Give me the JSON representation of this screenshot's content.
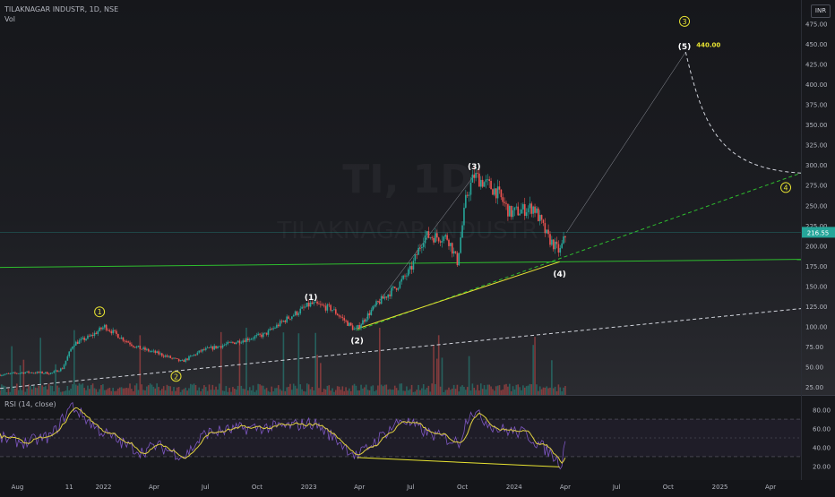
{
  "header": {
    "symbol_line": "TILAKNAGAR INDUSTR, 1D, NSE",
    "volume_label": "Vol",
    "currency_badge": "INR"
  },
  "watermark": {
    "ticker": "TI, 1D",
    "name": "TILAKNAGAR INDUSTR"
  },
  "colors": {
    "background": "#141519",
    "up": "#26a69a",
    "down": "#ef5350",
    "trend_green": "#2ebd2e",
    "wave_yellow": "#e8e332",
    "rsi_line": "#7e57c2",
    "rsi_ma": "#e0d040",
    "price_badge": "#26a69a"
  },
  "chart_data": {
    "type": "line",
    "symbol": "TILAKNAGAR INDUSTR",
    "interval": "1D",
    "exchange": "NSE",
    "currency": "INR",
    "price_axis": {
      "ylim": [
        15,
        500
      ],
      "ticks": [
        "25.00",
        "50.00",
        "75.00",
        "100.00",
        "125.00",
        "150.00",
        "175.00",
        "200.00",
        "225.00",
        "250.00",
        "275.00",
        "300.00",
        "325.00",
        "350.00",
        "375.00",
        "400.00",
        "425.00",
        "450.00",
        "475.00"
      ]
    },
    "time_axis": {
      "xlim": [
        "2021-07-01",
        "2025-05-25"
      ],
      "ticks": [
        {
          "label": "Aug",
          "date": "2021-08-01"
        },
        {
          "label": "11",
          "date": "2021-11-01"
        },
        {
          "label": "2022",
          "date": "2022-01-01"
        },
        {
          "label": "Apr",
          "date": "2022-04-01"
        },
        {
          "label": "Jul",
          "date": "2022-07-01"
        },
        {
          "label": "Oct",
          "date": "2022-10-01"
        },
        {
          "label": "2023",
          "date": "2023-01-01"
        },
        {
          "label": "Apr",
          "date": "2023-04-01"
        },
        {
          "label": "Jul",
          "date": "2023-07-01"
        },
        {
          "label": "Oct",
          "date": "2023-10-01"
        },
        {
          "label": "2024",
          "date": "2024-01-01"
        },
        {
          "label": "Apr",
          "date": "2024-04-01"
        },
        {
          "label": "Jul",
          "date": "2024-07-01"
        },
        {
          "label": "Oct",
          "date": "2024-10-01"
        },
        {
          "label": "2025",
          "date": "2025-01-01"
        },
        {
          "label": "Apr",
          "date": "2025-04-01"
        }
      ]
    },
    "price_path": [
      [
        "2021-07-01",
        40
      ],
      [
        "2021-08-15",
        43
      ],
      [
        "2021-10-01",
        42
      ],
      [
        "2021-10-20",
        48
      ],
      [
        "2021-11-08",
        78
      ],
      [
        "2021-12-10",
        88
      ],
      [
        "2022-01-03",
        100
      ],
      [
        "2022-02-01",
        86
      ],
      [
        "2022-03-01",
        74
      ],
      [
        "2022-04-10",
        66
      ],
      [
        "2022-05-20",
        56
      ],
      [
        "2022-06-25",
        70
      ],
      [
        "2022-08-15",
        79
      ],
      [
        "2022-10-15",
        90
      ],
      [
        "2022-11-20",
        108
      ],
      [
        "2023-01-05",
        128
      ],
      [
        "2023-02-10",
        122
      ],
      [
        "2023-03-25",
        95
      ],
      [
        "2023-05-01",
        127
      ],
      [
        "2023-06-10",
        152
      ],
      [
        "2023-07-01",
        170
      ],
      [
        "2023-07-25",
        212
      ],
      [
        "2023-09-05",
        210
      ],
      [
        "2023-09-22",
        180
      ],
      [
        "2023-10-08",
        260
      ],
      [
        "2023-10-22",
        287
      ],
      [
        "2023-11-30",
        268
      ],
      [
        "2023-12-25",
        240
      ],
      [
        "2024-02-05",
        248
      ],
      [
        "2024-03-01",
        210
      ],
      [
        "2024-03-22",
        192
      ],
      [
        "2024-04-03",
        216
      ]
    ],
    "last_price": "216.55",
    "rsi": {
      "label": "RSI (14, close)",
      "ylim": [
        0,
        100
      ],
      "ticks": [
        "20.00",
        "40.00",
        "60.00",
        "80.00"
      ],
      "bands": [
        30,
        50,
        70
      ],
      "path": [
        [
          "2021-07-01",
          50
        ],
        [
          "2021-08-15",
          45
        ],
        [
          "2021-10-01",
          52
        ],
        [
          "2021-11-05",
          85
        ],
        [
          "2021-12-20",
          60
        ],
        [
          "2022-02-01",
          45
        ],
        [
          "2022-03-10",
          35
        ],
        [
          "2022-04-05",
          42
        ],
        [
          "2022-05-25",
          30
        ],
        [
          "2022-07-01",
          55
        ],
        [
          "2022-09-01",
          60
        ],
        [
          "2022-11-15",
          62
        ],
        [
          "2023-01-10",
          66
        ],
        [
          "2023-02-20",
          48
        ],
        [
          "2023-03-28",
          30
        ],
        [
          "2023-06-15",
          70
        ],
        [
          "2023-08-01",
          55
        ],
        [
          "2023-09-25",
          45
        ],
        [
          "2023-10-15",
          80
        ],
        [
          "2023-12-01",
          60
        ],
        [
          "2024-01-20",
          55
        ],
        [
          "2024-03-05",
          34
        ],
        [
          "2024-03-25",
          22
        ],
        [
          "2024-04-03",
          55
        ]
      ]
    },
    "trend_lines": [
      {
        "style": "solid-green",
        "from": [
          "2021-07-01",
          173
        ],
        "to": [
          "2025-05-25",
          183
        ]
      },
      {
        "style": "dashed-green",
        "from": [
          "2023-03-28",
          95
        ],
        "to": [
          "2025-05-25",
          290
        ]
      },
      {
        "style": "solid-yellow",
        "from": [
          "2023-03-28",
          97
        ],
        "to": [
          "2024-03-22",
          180
        ]
      },
      {
        "style": "dashed-white",
        "from": [
          "2021-07-01",
          23
        ],
        "to": [
          "2025-05-25",
          122
        ]
      },
      {
        "style": "thin-projection",
        "from": [
          "2023-03-28",
          95
        ],
        "to": [
          "2023-10-22",
          287
        ]
      },
      {
        "style": "thin-projection",
        "from": [
          "2024-04-03",
          216
        ],
        "to": [
          "2024-11-01",
          440
        ]
      },
      {
        "style": "dashed-arc",
        "from": [
          "2024-11-01",
          440
        ],
        "to": [
          "2025-05-25",
          290
        ]
      }
    ],
    "wave_labels": [
      {
        "text": "1",
        "circled": true,
        "color": "yellow",
        "at": [
          "2021-12-25",
          118
        ],
        "place": "above"
      },
      {
        "text": "2",
        "circled": true,
        "color": "yellow",
        "at": [
          "2022-05-10",
          38
        ],
        "place": "below"
      },
      {
        "text": "(1)",
        "circled": false,
        "color": "white",
        "at": [
          "2023-01-05",
          136
        ],
        "place": "above"
      },
      {
        "text": "(2)",
        "circled": false,
        "color": "white",
        "at": [
          "2023-03-28",
          82
        ],
        "place": "below"
      },
      {
        "text": "(3)",
        "circled": false,
        "color": "white",
        "at": [
          "2023-10-22",
          298
        ],
        "place": "above"
      },
      {
        "text": "(4)",
        "circled": false,
        "color": "white",
        "at": [
          "2024-03-22",
          165
        ],
        "place": "below"
      },
      {
        "text": "(5)",
        "circled": false,
        "color": "white",
        "at": [
          "2024-10-30",
          447
        ],
        "place": "above"
      },
      {
        "text": "3",
        "circled": true,
        "color": "yellow",
        "at": [
          "2024-10-30",
          478
        ],
        "place": "above"
      },
      {
        "text": "4",
        "circled": true,
        "color": "yellow",
        "at": [
          "2025-04-28",
          272
        ],
        "place": "above"
      }
    ],
    "annotations": [
      {
        "text": "440.00",
        "color": "yellow",
        "at": [
          "2024-11-20",
          446
        ]
      }
    ],
    "rsi_divergence": {
      "from": [
        "2023-03-28",
        29
      ],
      "to": [
        "2024-03-22",
        19
      ]
    }
  }
}
